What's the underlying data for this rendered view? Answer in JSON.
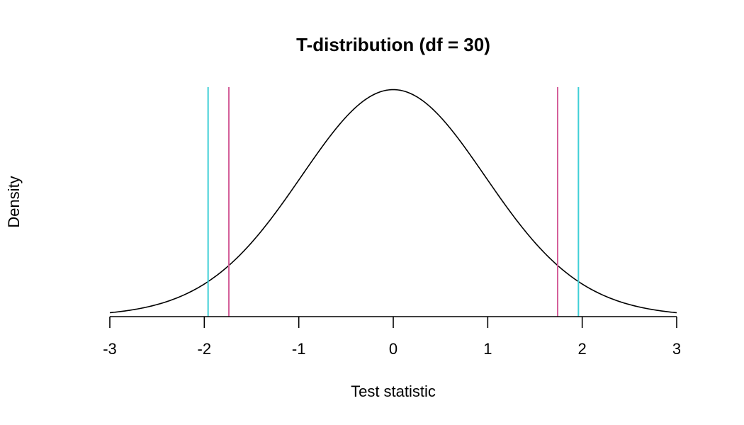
{
  "chart_data": {
    "type": "line",
    "title": "T-distribution (df = 30)",
    "xlabel": "Test statistic",
    "ylabel": "Density",
    "xlim": [
      -3,
      3
    ],
    "ylim": [
      0,
      0.4
    ],
    "x_ticks": [
      -3,
      -2,
      -1,
      0,
      1,
      2,
      3
    ],
    "x_tick_labels": [
      "-3",
      "-2",
      "-1",
      "0",
      "1",
      "2",
      "3"
    ],
    "y_ticks_shown": false,
    "grid": false,
    "series": [
      {
        "df": 30,
        "color": "#000000",
        "x": [
          -3.0,
          -2.75,
          -2.5,
          -2.25,
          -2.0,
          -1.75,
          -1.5,
          -1.25,
          -1.0,
          -0.75,
          -0.5,
          -0.25,
          0.0,
          0.25,
          0.5,
          0.75,
          1.0,
          1.25,
          1.5,
          1.75,
          2.0,
          2.25,
          2.5,
          2.75,
          3.0
        ],
        "y": [
          0.006,
          0.0114,
          0.0201,
          0.0332,
          0.0546,
          0.0866,
          0.1279,
          0.1779,
          0.2387,
          0.2977,
          0.3484,
          0.3835,
          0.3956,
          0.3835,
          0.3484,
          0.2977,
          0.2387,
          0.1779,
          0.1279,
          0.0866,
          0.0546,
          0.0332,
          0.0201,
          0.0114,
          0.006
        ]
      }
    ],
    "vlines": [
      {
        "x": -1.96,
        "color": "#3fcfd6"
      },
      {
        "x": -1.74,
        "color": "#d4609a"
      },
      {
        "x": 1.74,
        "color": "#d4609a"
      },
      {
        "x": 1.96,
        "color": "#3fcfd6"
      }
    ]
  }
}
